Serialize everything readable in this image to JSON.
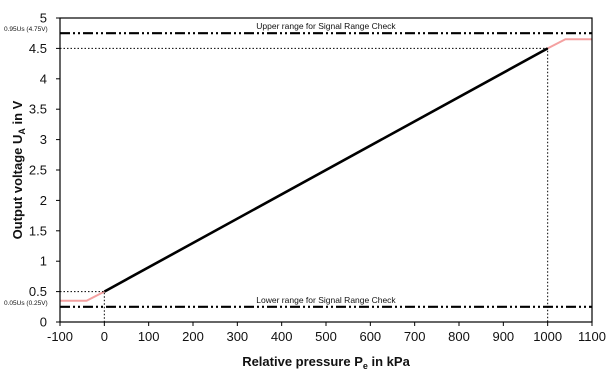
{
  "chart_data": {
    "type": "line",
    "title": "",
    "xlabel_main": "Relative pressure P",
    "xlabel_sub": "e",
    "xlabel_suffix": " in kPa",
    "ylabel_main": "Output voltage U",
    "ylabel_sub": "A",
    "ylabel_suffix": " in V",
    "xlim": [
      -100,
      1100
    ],
    "ylim": [
      0,
      5
    ],
    "x_ticks": [
      -100,
      0,
      100,
      200,
      300,
      400,
      500,
      600,
      700,
      800,
      900,
      1000,
      1100
    ],
    "y_ticks": [
      0,
      0.5,
      1,
      1.5,
      2,
      2.5,
      3,
      3.5,
      4,
      4.5,
      5
    ],
    "y_tick_labels": [
      "0",
      "0.5",
      "1",
      "1.5",
      "2",
      "2.5",
      "3",
      "3.5",
      "4",
      "4.5",
      "5"
    ],
    "grid": false,
    "series": [
      {
        "color": "#000000",
        "x": [
          0,
          1000
        ],
        "y": [
          0.5,
          4.5
        ]
      },
      {
        "color": "#f4a0a0",
        "x": [
          -100,
          -40,
          0
        ],
        "y": [
          0.35,
          0.35,
          0.5
        ]
      },
      {
        "color": "#f4a0a0",
        "x": [
          1000,
          1040,
          1100
        ],
        "y": [
          4.5,
          4.65,
          4.65
        ]
      }
    ],
    "reference_lines": [
      {
        "y": 4.75,
        "label": "Upper range for Signal Range Check",
        "left_label": "0.95Us (4.75V)"
      },
      {
        "y": 0.25,
        "label": "Lower range for Signal Range Check",
        "left_label": "0.05Us (0.25V)"
      }
    ],
    "guide_lines": [
      {
        "from": [
          -100,
          0.5
        ],
        "corner": [
          0,
          0.5
        ],
        "to": [
          0,
          0
        ]
      },
      {
        "from": [
          -100,
          4.5
        ],
        "corner": [
          1000,
          4.5
        ],
        "to": [
          1000,
          0
        ]
      }
    ]
  }
}
